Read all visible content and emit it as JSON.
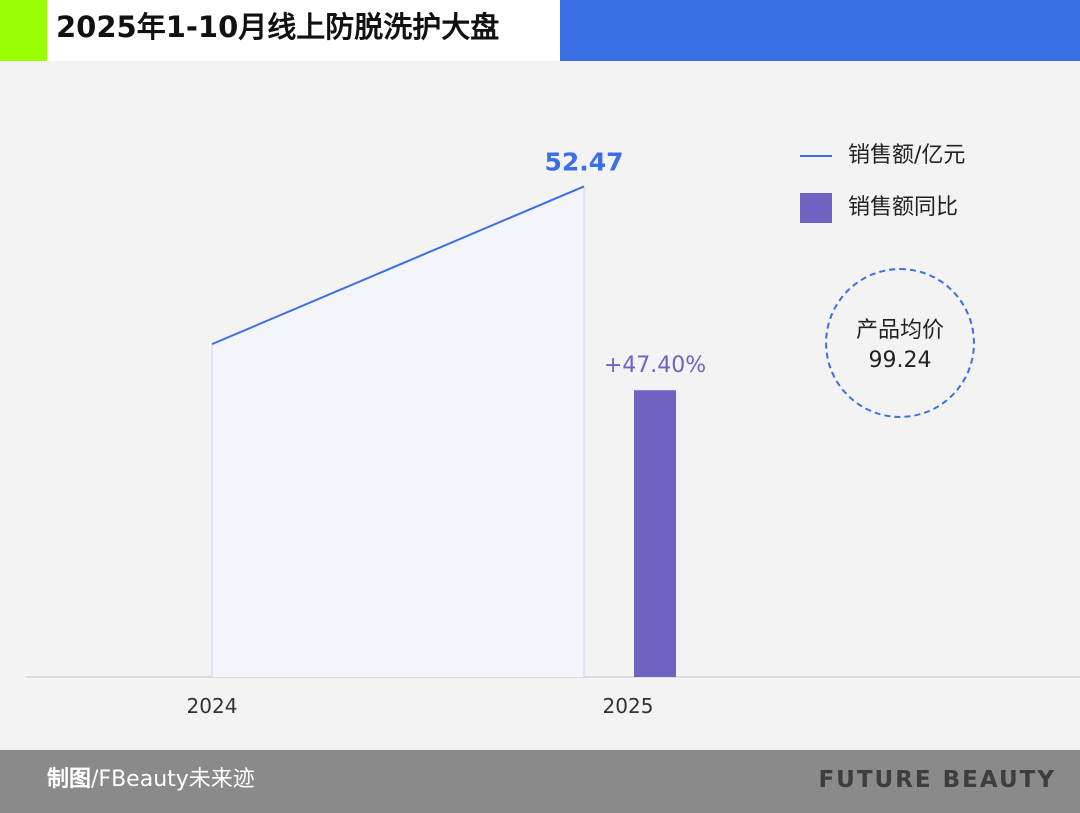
{
  "header": {
    "title": "2025年1-10月线上防脱洗护大盘"
  },
  "legend": {
    "items": [
      {
        "label": "销售额/亿元"
      },
      {
        "label": "销售额同比"
      }
    ]
  },
  "price_badge": {
    "label": "产品均价",
    "value": "99.24"
  },
  "footer": {
    "credit_prefix": "制图",
    "credit_suffix": "/FBeauty未来迹",
    "brand": "FUTURE BEAUTY"
  },
  "colors": {
    "accent_green": "#99ff00",
    "header_blue": "#3b6fe6",
    "line_blue": "#3b6fe6",
    "bar_purple": "#6f63c2",
    "footer_gray": "#8a8a8a"
  },
  "chart_data": {
    "type": "bar+line",
    "categories": [
      "2024",
      "2025"
    ],
    "series": [
      {
        "name": "销售额/亿元",
        "type": "line",
        "values": [
          35.6,
          52.47
        ],
        "data_labels": [
          "",
          "52.47"
        ]
      },
      {
        "name": "销售额同比",
        "type": "bar",
        "values": [
          null,
          47.4
        ],
        "data_labels": [
          "",
          "+47.40%"
        ]
      }
    ],
    "legend_position": "right",
    "grid": false
  }
}
